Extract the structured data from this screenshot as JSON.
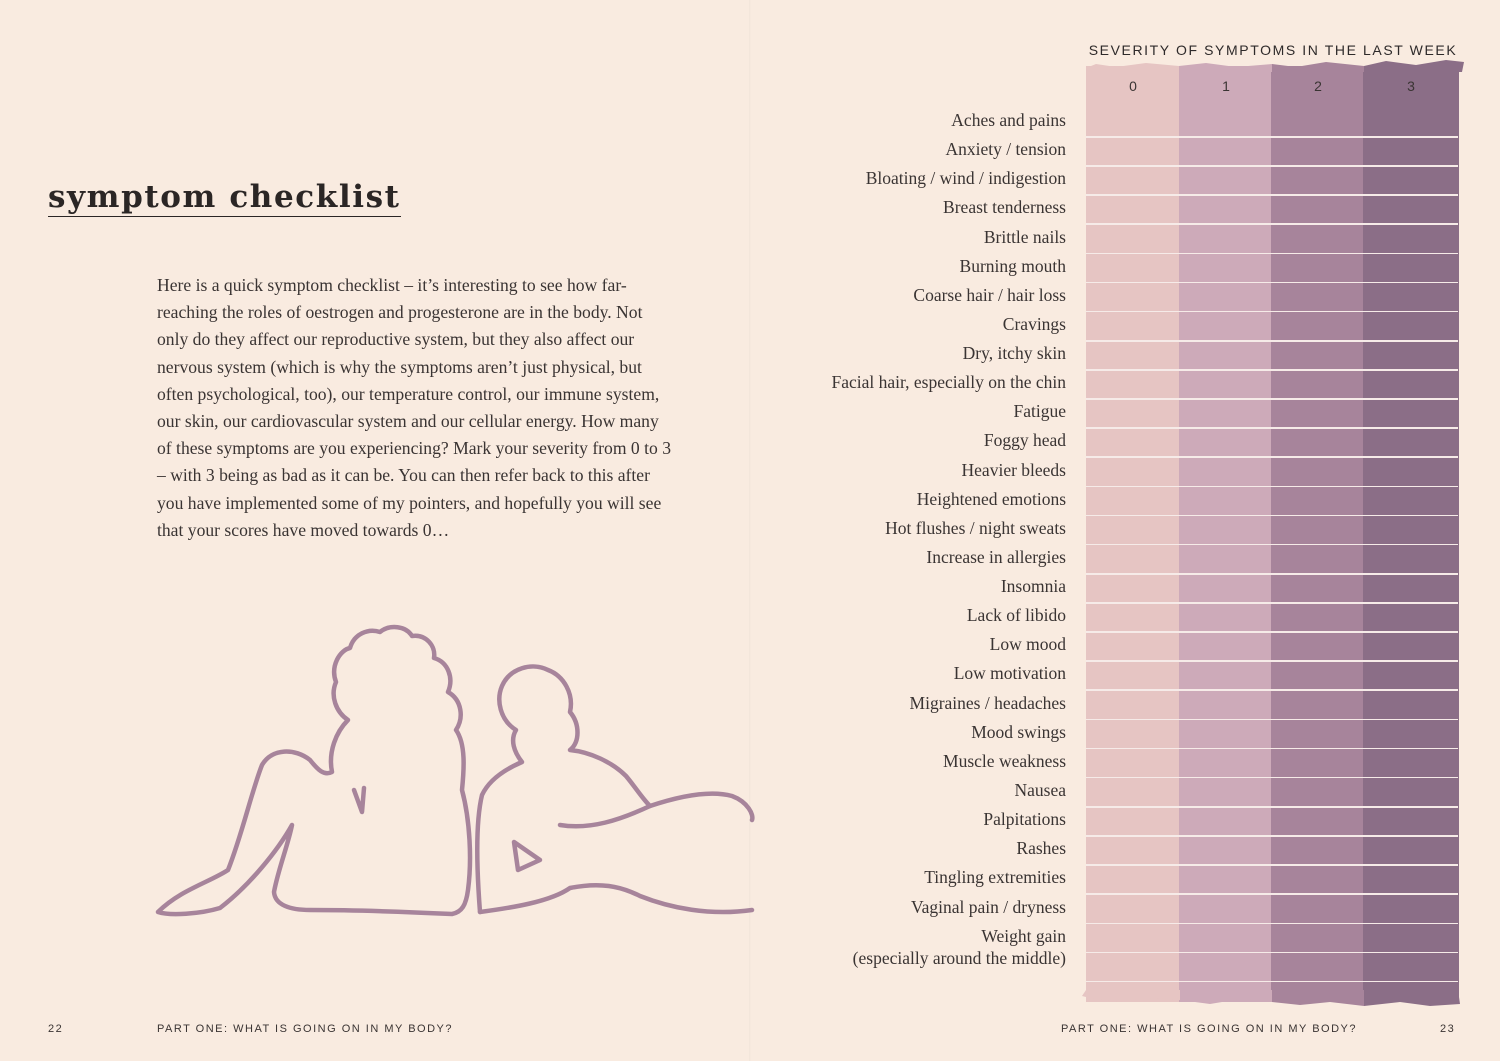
{
  "left_page": {
    "title": "symptom checklist",
    "intro": "Here is a quick symptom checklist – it’s interesting to see how far-reaching the roles of oestrogen and progesterone are in the body. Not only do they affect our reproductive system, but they also affect our nervous system (which is why the symptoms aren’t just physical, but often psychological, too), our temperature control, our immune system, our skin, our cardiovascular system and our cellular energy. How many of these symptoms are you experiencing? Mark your severity from 0 to 3 – with 3 being as bad as it can be. You can then refer back to this after you have implemented some of my pointers, and hopefully you will see that your scores have moved towards 0…",
    "page_number": "22",
    "running_head": "PART ONE: WHAT IS GOING ON IN MY BODY?",
    "illustration": "line drawing of two women sitting back to back"
  },
  "right_page": {
    "chart_heading": "SEVERITY OF SYMPTOMS IN THE LAST WEEK",
    "scale": [
      "0",
      "1",
      "2",
      "3"
    ],
    "band_colors": [
      "#e6c5c3",
      "#cdaab9",
      "#a7849b",
      "#8b6e87"
    ],
    "symptoms": [
      "Aches and pains",
      "Anxiety / tension",
      "Bloating / wind / indigestion",
      "Breast tenderness",
      "Brittle nails",
      "Burning mouth",
      "Coarse hair / hair loss",
      "Cravings",
      "Dry, itchy skin",
      "Facial hair, especially on the chin",
      "Fatigue",
      "Foggy head",
      "Heavier bleeds",
      "Heightened emotions",
      "Hot flushes / night sweats",
      "Increase in allergies",
      "Insomnia",
      "Lack of libido",
      "Low mood",
      "Low motivation",
      "Migraines / headaches",
      "Mood swings",
      "Muscle weakness",
      "Nausea",
      "Palpitations",
      "Rashes",
      "Tingling extremities",
      "Vaginal pain / dryness",
      "Weight gain"
    ],
    "last_symptom_note": "(especially around the middle)",
    "page_number": "23",
    "running_head": "PART ONE: WHAT IS GOING ON IN MY BODY?"
  }
}
